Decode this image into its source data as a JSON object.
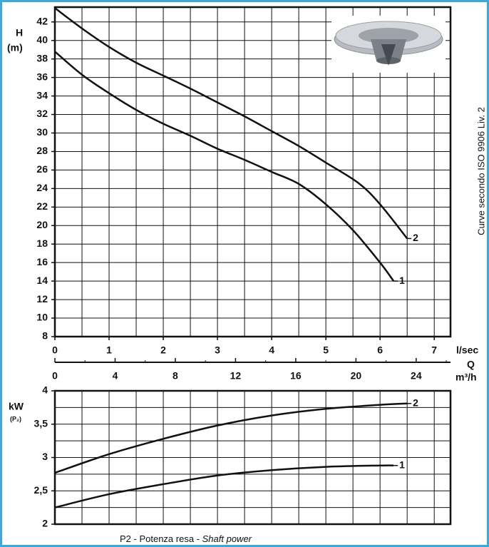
{
  "chart_data": [
    {
      "type": "line",
      "y_label": "H",
      "y_unit": "(m)",
      "x_label": "l/sec",
      "x2_label": "Q",
      "x2_unit": "m³/h",
      "side_note": "Curve secondo ISO 9906 Liv. 2",
      "xlim": [
        0,
        7.3
      ],
      "xticks": [
        0,
        1,
        2,
        3,
        4,
        5,
        6,
        7
      ],
      "xgrid": [
        0,
        0.5,
        1,
        1.5,
        2,
        2.5,
        3,
        3.5,
        4,
        4.5,
        5,
        5.5,
        6,
        6.5,
        7
      ],
      "x2lim": [
        0,
        26.28
      ],
      "x2ticks": [
        0,
        4,
        8,
        12,
        16,
        20,
        24
      ],
      "x2minorticks": [
        2,
        6,
        10,
        14,
        18,
        22,
        26
      ],
      "ylim": [
        8,
        43.6
      ],
      "yticks": [
        8,
        10,
        12,
        14,
        16,
        18,
        20,
        22,
        24,
        26,
        28,
        30,
        32,
        34,
        36,
        38,
        40,
        42
      ],
      "grid": true,
      "series": [
        {
          "name": "1",
          "color": "#111111",
          "x": [
            0,
            0.5,
            1,
            1.5,
            2,
            2.5,
            3,
            3.5,
            4,
            4.5,
            5,
            5.5,
            6,
            6.25
          ],
          "values": [
            38.8,
            36.3,
            34.3,
            32.5,
            31,
            29.7,
            28.3,
            27.1,
            25.8,
            24.5,
            22.3,
            19.5,
            16,
            14
          ]
        },
        {
          "name": "2",
          "color": "#111111",
          "x": [
            0,
            0.5,
            1,
            1.5,
            2,
            2.5,
            3,
            3.5,
            4,
            4.5,
            5,
            5.6,
            6,
            6.5
          ],
          "values": [
            43.5,
            41.3,
            39.3,
            37.6,
            36.2,
            34.8,
            33.3,
            31.8,
            30.2,
            28.6,
            26.8,
            24.6,
            22.3,
            18.6
          ]
        }
      ]
    },
    {
      "type": "line",
      "y_label": "kW",
      "y_unit": "(P₂)",
      "caption": "P2 - Potenza resa - ",
      "caption_italic": "Shaft power",
      "xlim": [
        0,
        7.3
      ],
      "xgrid": [
        0,
        0.5,
        1,
        1.5,
        2,
        2.5,
        3,
        3.5,
        4,
        4.5,
        5,
        5.5,
        6,
        6.5,
        7
      ],
      "ylim": [
        2,
        4
      ],
      "yticks": [
        2,
        {
          "value": 2.5,
          "label": "2,5"
        },
        3,
        {
          "value": 3.5,
          "label": "3,5"
        },
        4
      ],
      "ygrid": [
        2,
        2.25,
        2.5,
        2.75,
        3,
        3.25,
        3.5,
        3.75,
        4
      ],
      "grid": true,
      "series": [
        {
          "name": "1",
          "color": "#111111",
          "x": [
            0,
            1,
            2,
            3,
            4,
            5,
            6,
            6.25
          ],
          "values": [
            2.25,
            2.45,
            2.6,
            2.73,
            2.81,
            2.86,
            2.88,
            2.88
          ]
        },
        {
          "name": "2",
          "color": "#111111",
          "x": [
            0,
            1,
            2,
            3,
            4,
            5,
            6,
            6.5
          ],
          "values": [
            2.77,
            3.05,
            3.28,
            3.48,
            3.63,
            3.73,
            3.79,
            3.81
          ]
        }
      ]
    }
  ]
}
